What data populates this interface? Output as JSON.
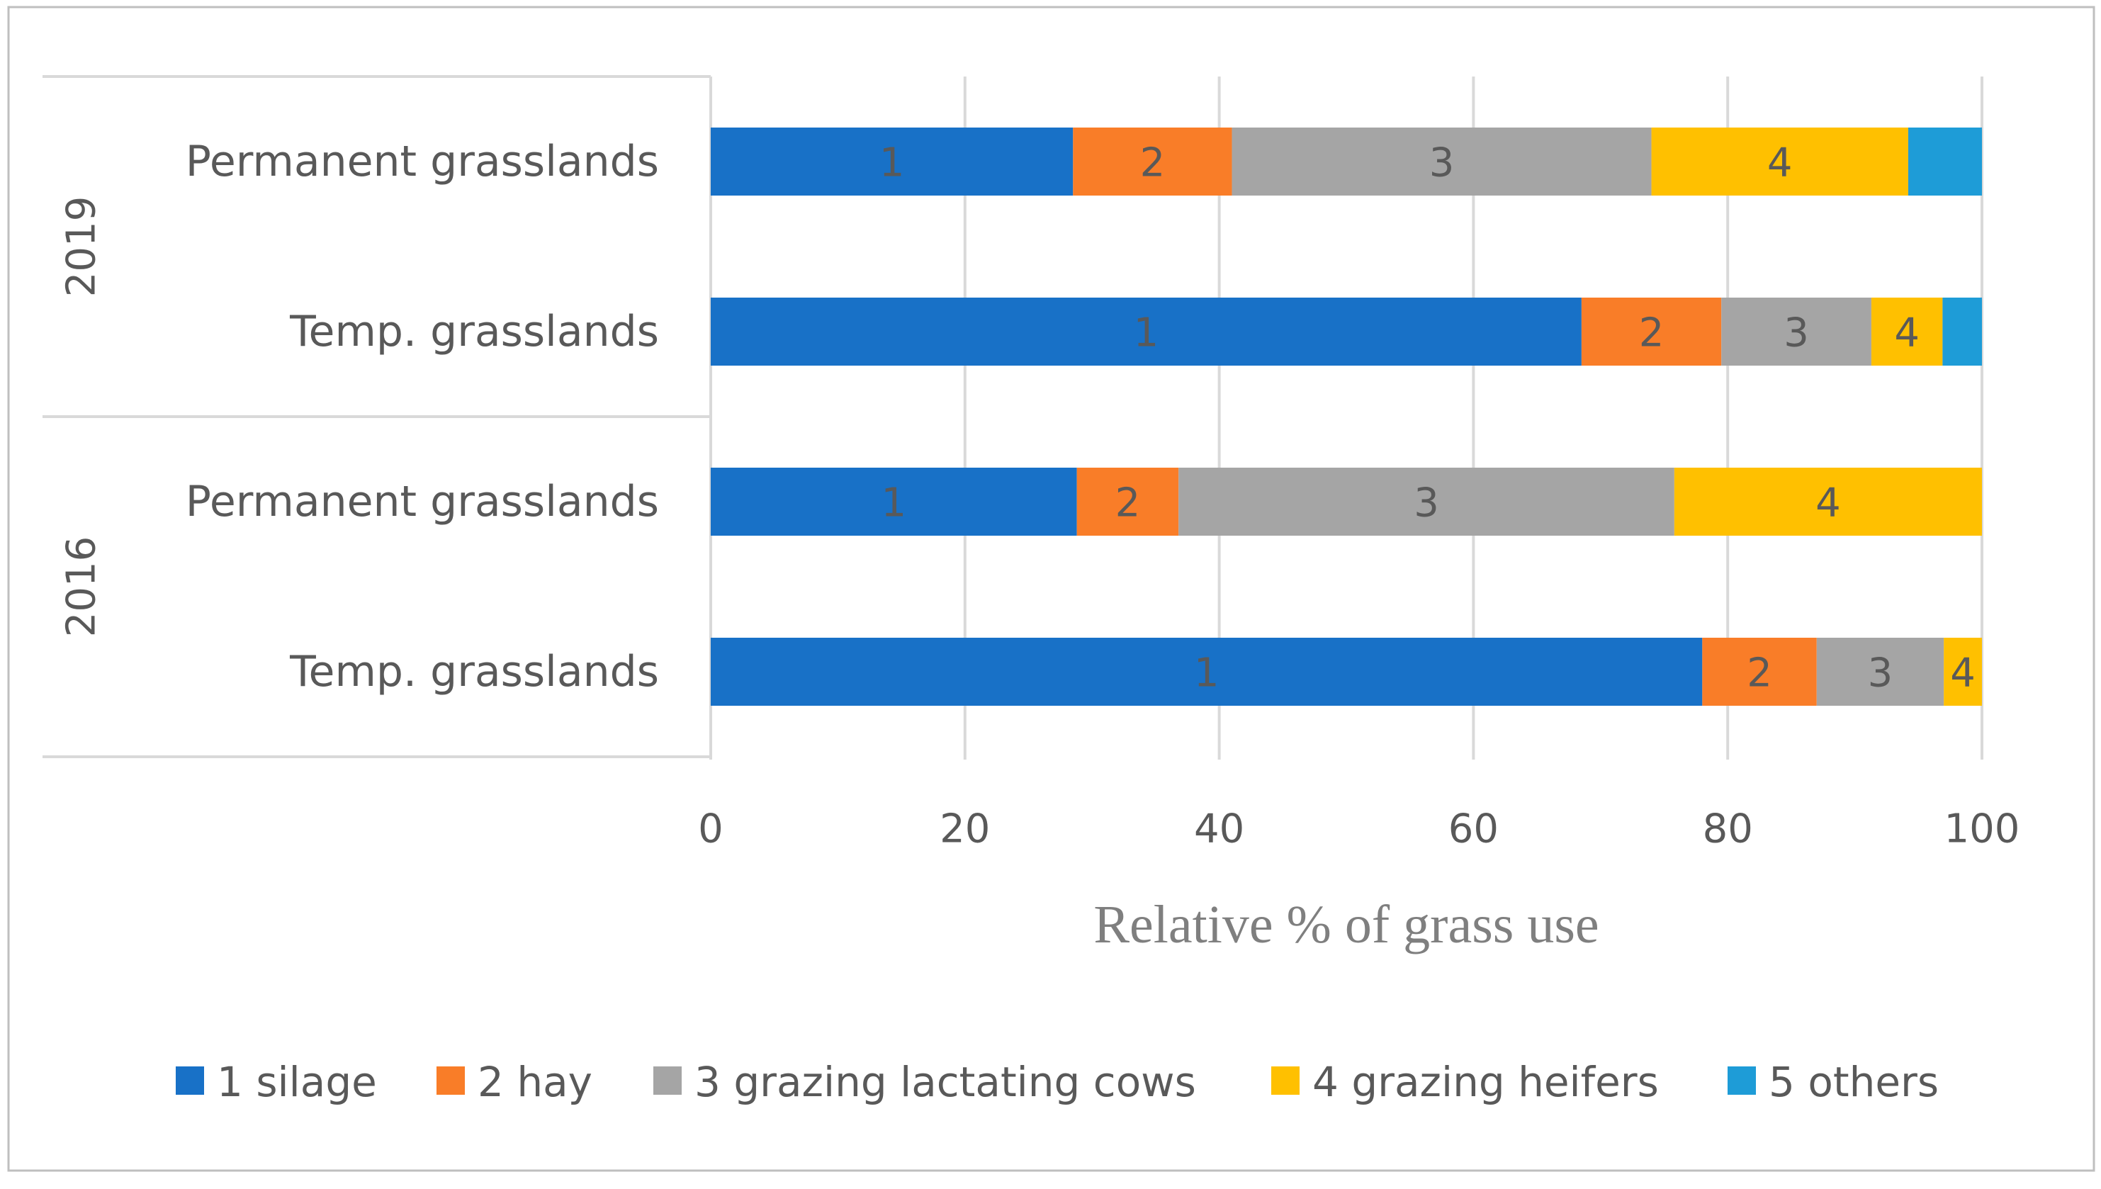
{
  "chart_data": {
    "type": "bar",
    "orientation": "horizontal",
    "stacked": true,
    "groups": [
      {
        "name": "2019",
        "rows": [
          {
            "label": "Permanent grasslands",
            "values": [
              28.5,
              12.5,
              33,
              20.2,
              5.8
            ]
          },
          {
            "label": "Temp. grasslands",
            "values": [
              68.5,
              11,
              11.8,
              5.6,
              3.1
            ]
          }
        ]
      },
      {
        "name": "2016",
        "rows": [
          {
            "label": "Permanent grasslands",
            "values": [
              28.8,
              8,
              39,
              24.2,
              0
            ]
          },
          {
            "label": "Temp. grasslands",
            "values": [
              78,
              9,
              10,
              3,
              0
            ]
          }
        ]
      }
    ],
    "series": [
      {
        "name": "1 silage",
        "code": "1",
        "color": "#1871C7"
      },
      {
        "name": "2 hay",
        "code": "2",
        "color": "#F97D28"
      },
      {
        "name": "3 grazing lactating cows",
        "code": "3",
        "color": "#A5A5A5"
      },
      {
        "name": "4 grazing heifers",
        "code": "4",
        "color": "#FFC000"
      },
      {
        "name": "5 others",
        "code": "5",
        "color": "#1E9CD7"
      }
    ],
    "segment_labels_shown_for": [
      "1",
      "2",
      "3",
      "4"
    ],
    "xlim": [
      0,
      100
    ],
    "xticks": [
      0,
      20,
      40,
      60,
      80,
      100
    ],
    "xlabel": "Relative % of grass use",
    "ylabel": "",
    "grid": "vertical",
    "legend_position": "bottom"
  },
  "colors": {
    "gridline": "#D9D9D9",
    "axis_line": "#D9D9D9",
    "frame": "#BFBFBF",
    "segment_label": "#595959",
    "category_label": "#595959",
    "tick_label": "#595959",
    "axis_title": "#7F7F7F"
  }
}
